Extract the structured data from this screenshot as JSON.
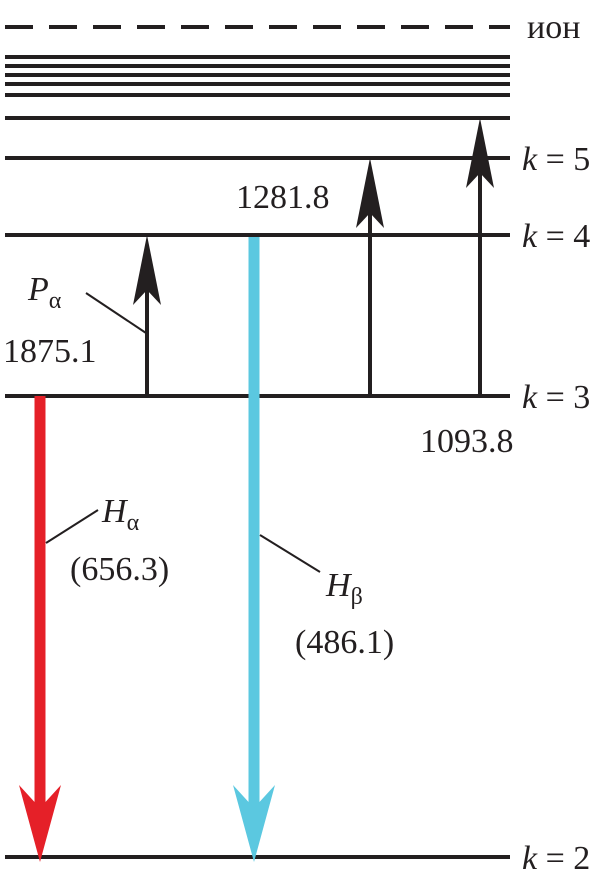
{
  "levels": [
    {
      "label": "ион"
    },
    {
      "symbol": "k",
      "value": "= 5"
    },
    {
      "symbol": "k",
      "value": "= 4"
    },
    {
      "symbol": "k",
      "value": "= 3"
    },
    {
      "symbol": "k",
      "value": "= 2"
    }
  ],
  "paschen": [
    {
      "name": "P",
      "sub": "α",
      "wavelength": "1875.1"
    },
    {
      "wavelength": "1281.8"
    },
    {
      "wavelength": "1093.8"
    }
  ],
  "balmer": [
    {
      "name": "H",
      "sub": "α",
      "wavelength": "(656.3)"
    },
    {
      "name": "H",
      "sub": "β",
      "wavelength": "(486.1)"
    }
  ]
}
